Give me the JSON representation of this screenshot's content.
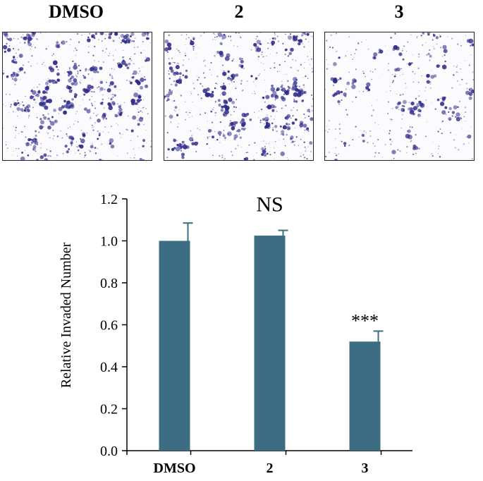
{
  "panels": [
    {
      "label": "DMSO",
      "density": 0.62
    },
    {
      "label": "2",
      "density": 0.58
    },
    {
      "label": "3",
      "density": 0.3
    }
  ],
  "colors": {
    "bar": "#3d6d82",
    "cell_stain": "#2e2a8a",
    "axis": "#000000"
  },
  "chart_data": {
    "type": "bar",
    "categories": [
      "DMSO",
      "2",
      "3"
    ],
    "values": [
      1.0,
      1.025,
      0.52
    ],
    "errors": [
      0.085,
      0.025,
      0.05
    ],
    "annotations": [
      "",
      "NS",
      "***"
    ],
    "title": "",
    "xlabel": "",
    "ylabel": "Relative Invaded Number",
    "ylim": [
      0.0,
      1.2
    ],
    "yticks": [
      "0.0",
      "0.2",
      "0.4",
      "0.6",
      "0.8",
      "1.0",
      "1.2"
    ],
    "grid": false,
    "legend": "none"
  }
}
